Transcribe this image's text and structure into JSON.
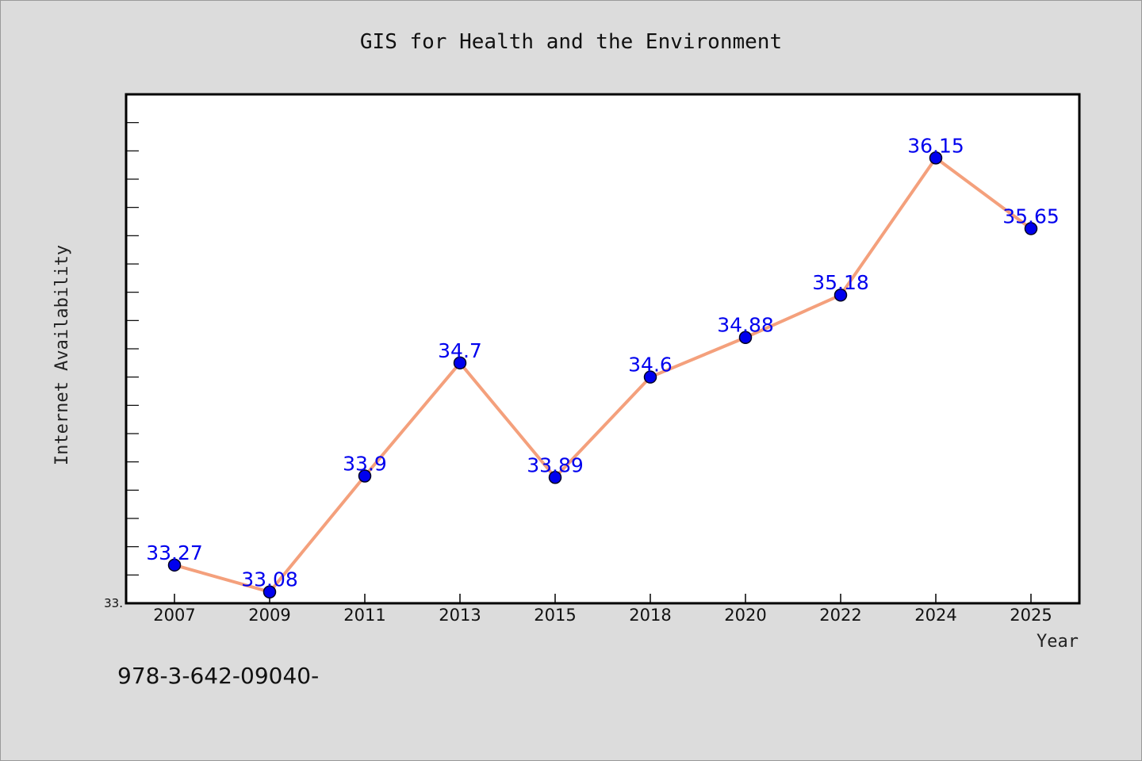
{
  "chart_data": {
    "type": "line",
    "title": "GIS for Health and the Environment",
    "xlabel": "Year",
    "ylabel": "Internet Availability",
    "categories": [
      "2007",
      "2009",
      "2011",
      "2013",
      "2015",
      "2018",
      "2020",
      "2022",
      "2024",
      "2025"
    ],
    "series": [
      {
        "values": [
          33.27,
          33.08,
          33.9,
          34.7,
          33.89,
          34.6,
          34.88,
          35.18,
          36.15,
          35.65
        ]
      }
    ],
    "data_labels": [
      "33.27",
      "33.08",
      "33.9",
      "34.7",
      "33.89",
      "34.6",
      "34.88",
      "35.18",
      "36.15",
      "35.65"
    ],
    "ylim": [
      33.0,
      36.6
    ],
    "ytick_labels": [
      "33."
    ],
    "grid": false,
    "legend": "none",
    "colors": {
      "line": "#f4a07c",
      "marker": "#0000ee",
      "data_label": "#0000ee",
      "plot_background": "#ffffff",
      "page_background": "#dcdcdc"
    }
  },
  "footnote": "978-3-642-09040-"
}
